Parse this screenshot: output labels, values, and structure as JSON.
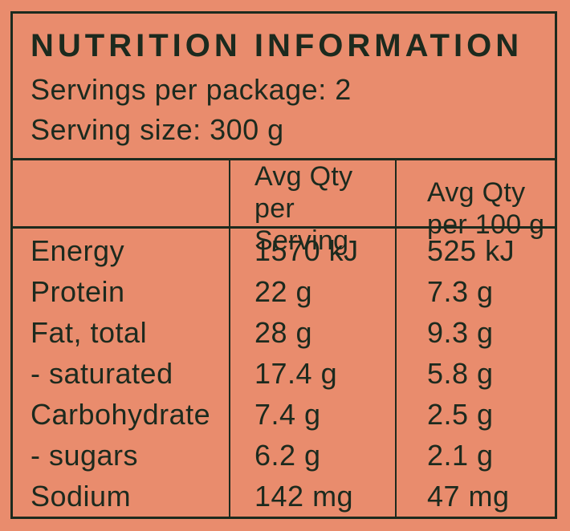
{
  "colors": {
    "background": "#E98C6D",
    "ink": "#1C2A1E"
  },
  "label": {
    "title": "NUTRITION INFORMATION",
    "servings_per_package": "Servings per package: 2",
    "serving_size": "Serving size: 300 g",
    "columns": {
      "per_serving_line1": "Avg Qty",
      "per_serving_line2": "per Serving",
      "per_100g_line1": "Avg Qty",
      "per_100g_line2": "per 100 g"
    },
    "rows": [
      {
        "nutrient": "Energy",
        "per_serving": "1570 kJ",
        "per_100g": "525 kJ"
      },
      {
        "nutrient": "Protein",
        "per_serving": "22 g",
        "per_100g": "7.3 g"
      },
      {
        "nutrient": "Fat, total",
        "per_serving": "28 g",
        "per_100g": "9.3 g"
      },
      {
        "nutrient": "- saturated",
        "per_serving": "17.4 g",
        "per_100g": "5.8 g"
      },
      {
        "nutrient": "Carbohydrate",
        "per_serving": "7.4 g",
        "per_100g": "2.5 g"
      },
      {
        "nutrient": "- sugars",
        "per_serving": "6.2 g",
        "per_100g": "2.1 g"
      },
      {
        "nutrient": "Sodium",
        "per_serving": "142 mg",
        "per_100g": "47 mg"
      }
    ]
  }
}
